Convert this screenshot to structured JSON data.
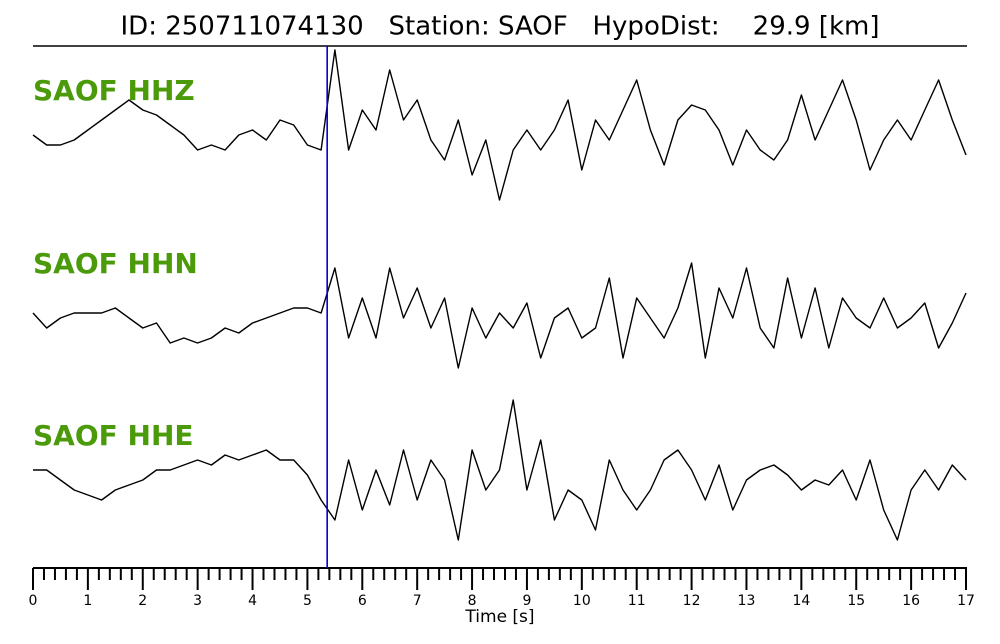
{
  "chart_data": {
    "type": "line",
    "title": "ID: 250711074130   Station: SAOF   HypoDist:    29.9 [km]",
    "xlabel": "Time [s]",
    "xlim": [
      0,
      17
    ],
    "xticks": [
      0,
      1,
      2,
      3,
      4,
      5,
      6,
      7,
      8,
      9,
      10,
      11,
      12,
      13,
      14,
      15,
      16,
      17
    ],
    "minor_ticks_per_major": 5,
    "ylim": [
      -90,
      90
    ],
    "pick": 5.36,
    "pick_color": "#0000cc",
    "label_color": "#4a9a0a",
    "x": [
      0,
      0.25,
      0.5,
      0.75,
      1,
      1.25,
      1.5,
      1.75,
      2,
      2.25,
      2.5,
      2.75,
      3,
      3.25,
      3.5,
      3.75,
      4,
      4.25,
      4.5,
      4.75,
      5,
      5.25,
      5.5,
      5.75,
      6,
      6.25,
      6.5,
      6.75,
      7,
      7.25,
      7.5,
      7.75,
      8,
      8.25,
      8.5,
      8.75,
      9,
      9.25,
      9.5,
      9.75,
      10,
      10.25,
      10.5,
      10.75,
      11,
      11.25,
      11.5,
      11.75,
      12,
      12.25,
      12.5,
      12.75,
      13,
      13.25,
      13.5,
      13.75,
      14,
      14.25,
      14.5,
      14.75,
      15,
      15.25,
      15.5,
      15.75,
      16,
      16.25,
      16.5,
      16.75,
      17
    ],
    "series": [
      {
        "name": "SAOF HHZ",
        "color": "#000000",
        "values": [
          -5,
          -15,
          -15,
          -10,
          0,
          10,
          20,
          30,
          20,
          15,
          5,
          -5,
          -20,
          -15,
          -20,
          -5,
          0,
          -10,
          10,
          5,
          -15,
          -20,
          80,
          -20,
          20,
          0,
          60,
          10,
          30,
          -10,
          -30,
          10,
          -45,
          -10,
          -70,
          -20,
          0,
          -20,
          0,
          30,
          -40,
          10,
          -10,
          20,
          50,
          0,
          -35,
          10,
          25,
          20,
          0,
          -35,
          0,
          -20,
          -30,
          -10,
          35,
          -10,
          20,
          50,
          10,
          -40,
          -10,
          10,
          -10,
          20,
          50,
          10,
          -25
        ]
      },
      {
        "name": "SAOF HHN",
        "color": "#000000",
        "values": [
          5,
          -10,
          0,
          5,
          5,
          5,
          10,
          0,
          -10,
          -5,
          -25,
          -20,
          -25,
          -20,
          -10,
          -15,
          -5,
          0,
          5,
          10,
          10,
          5,
          50,
          -20,
          20,
          -20,
          50,
          0,
          30,
          -10,
          20,
          -50,
          10,
          -20,
          5,
          -10,
          15,
          -40,
          0,
          10,
          -20,
          -10,
          40,
          -40,
          20,
          0,
          -20,
          10,
          55,
          -40,
          30,
          0,
          50,
          -10,
          -30,
          40,
          -20,
          30,
          -30,
          20,
          0,
          -10,
          20,
          -10,
          0,
          15,
          -30,
          -5,
          25
        ]
      },
      {
        "name": "SAOF HHE",
        "color": "#000000",
        "values": [
          10,
          10,
          0,
          -10,
          -15,
          -20,
          -10,
          -5,
          0,
          10,
          10,
          15,
          20,
          15,
          25,
          20,
          25,
          30,
          20,
          20,
          5,
          -20,
          -40,
          20,
          -30,
          10,
          -25,
          30,
          -20,
          20,
          0,
          -60,
          30,
          -10,
          10,
          80,
          -10,
          40,
          -40,
          -10,
          -20,
          -50,
          20,
          -10,
          -30,
          -10,
          20,
          30,
          10,
          -20,
          15,
          -30,
          0,
          10,
          15,
          5,
          -10,
          0,
          -5,
          10,
          -20,
          20,
          -30,
          -60,
          -10,
          10,
          -10,
          15,
          0
        ]
      }
    ]
  }
}
